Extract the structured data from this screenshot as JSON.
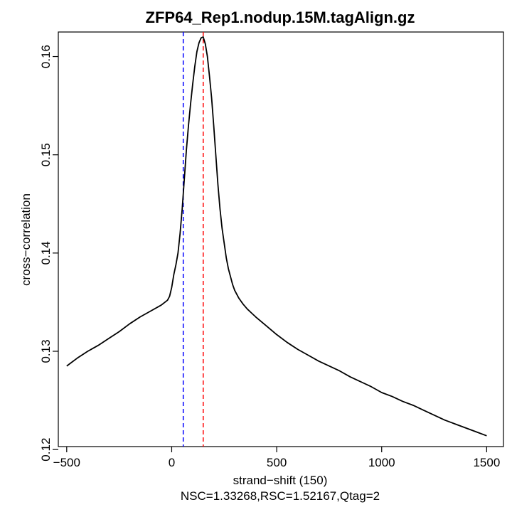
{
  "chart_data": {
    "type": "line",
    "title": "ZFP64_Rep1.nodup.15M.tagAlign.gz",
    "xlabel": "strand−shift (150)",
    "ylabel": "cross−correlation",
    "sublabel": "NSC=1.33268,RSC=1.52167,Qtag=2",
    "xlim": [
      -540,
      1580
    ],
    "ylim": [
      0.1203,
      0.1625
    ],
    "x_ticks": [
      -500,
      0,
      500,
      1000,
      1500
    ],
    "x_tick_labels": [
      "−500",
      "0",
      "500",
      "1000",
      "1500"
    ],
    "y_ticks": [
      0.12,
      0.13,
      0.14,
      0.15,
      0.16
    ],
    "y_tick_labels": [
      "0.12",
      "0.13",
      "0.14",
      "0.15",
      "0.16"
    ],
    "series": [
      {
        "color": "#000000",
        "x": [
          -500,
          -450,
          -400,
          -350,
          -300,
          -250,
          -200,
          -150,
          -100,
          -50,
          -20,
          -10,
          0,
          10,
          20,
          30,
          40,
          50,
          60,
          70,
          80,
          90,
          100,
          110,
          120,
          130,
          140,
          150,
          160,
          170,
          180,
          190,
          200,
          210,
          220,
          230,
          240,
          250,
          260,
          270,
          280,
          290,
          300,
          320,
          340,
          360,
          380,
          400,
          450,
          500,
          550,
          600,
          650,
          700,
          750,
          800,
          850,
          900,
          950,
          1000,
          1050,
          1100,
          1150,
          1200,
          1250,
          1300,
          1350,
          1400,
          1450,
          1500
        ],
        "y": [
          0.1285,
          0.1293,
          0.13,
          0.1306,
          0.1313,
          0.132,
          0.1328,
          0.1335,
          0.1341,
          0.1347,
          0.1352,
          0.1356,
          0.1365,
          0.1378,
          0.1388,
          0.14,
          0.142,
          0.1445,
          0.1475,
          0.1505,
          0.153,
          0.1552,
          0.1572,
          0.159,
          0.1605,
          0.1614,
          0.1619,
          0.162,
          0.1613,
          0.16,
          0.158,
          0.1558,
          0.153,
          0.15,
          0.147,
          0.1445,
          0.1425,
          0.141,
          0.1395,
          0.1384,
          0.1376,
          0.1368,
          0.1362,
          0.1354,
          0.1348,
          0.1343,
          0.1339,
          0.1335,
          0.1326,
          0.1317,
          0.1309,
          0.1302,
          0.1296,
          0.129,
          0.1285,
          0.128,
          0.1274,
          0.1269,
          0.1264,
          0.1258,
          0.1254,
          0.1249,
          0.1245,
          0.124,
          0.1235,
          0.123,
          0.1226,
          0.1222,
          0.1218,
          0.1214
        ]
      }
    ],
    "vlines": [
      {
        "x": 55,
        "color": "#0000ff",
        "style": "dashed"
      },
      {
        "x": 150,
        "color": "#ff0000",
        "style": "dashed"
      }
    ],
    "grid": false,
    "legend": "none"
  }
}
